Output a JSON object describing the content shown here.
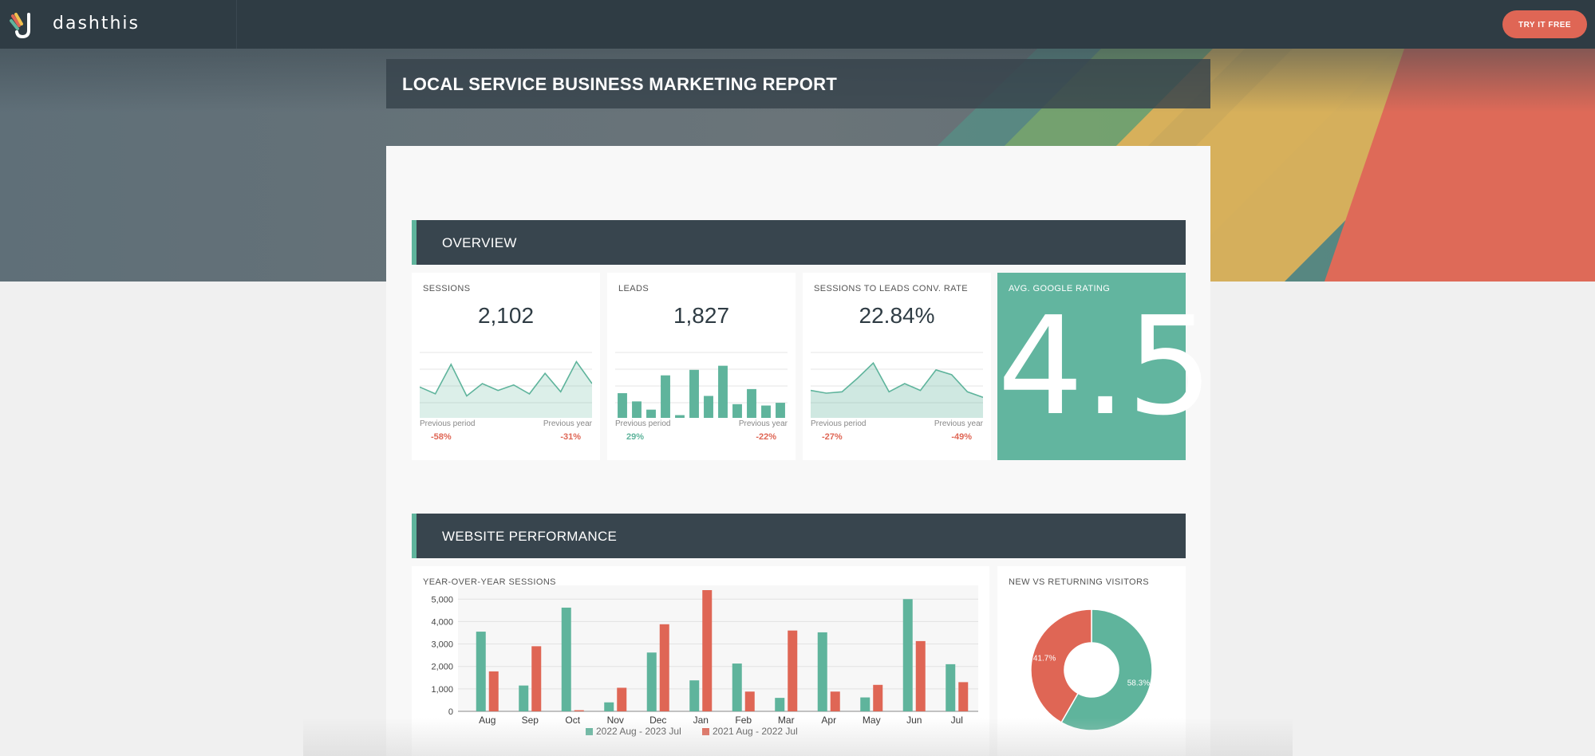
{
  "app": {
    "logo_text": "dashthis",
    "cta_label": "TRY IT FREE"
  },
  "report": {
    "title": "LOCAL SERVICE BUSINESS MARKETING REPORT"
  },
  "colors": {
    "accent_green": "#5fb49c",
    "accent_red": "#df6655",
    "header_dark": "#38454e",
    "topbar": "#2f3c44"
  },
  "overview": {
    "heading": "OVERVIEW",
    "kpis": [
      {
        "title": "SESSIONS",
        "value": "2,102",
        "prev_period_label": "Previous period",
        "prev_period": "-58%",
        "prev_year_label": "Previous year",
        "prev_year": "-31%"
      },
      {
        "title": "LEADS",
        "value": "1,827",
        "prev_period_label": "Previous period",
        "prev_period": "29%",
        "prev_year_label": "Previous year",
        "prev_year": "-22%"
      },
      {
        "title": "SESSIONS TO LEADS CONV. RATE",
        "value": "22.84%",
        "prev_period_label": "Previous period",
        "prev_period": "-27%",
        "prev_year_label": "Previous year",
        "prev_year": "-49%"
      }
    ],
    "rating": {
      "title": "AVG. GOOGLE RATING",
      "value": "4.5"
    }
  },
  "website": {
    "heading": "WEBSITE PERFORMANCE",
    "sessions_chart_title": "YEAR-OVER-YEAR SESSIONS",
    "visitors_chart_title": "NEW VS RETURNING VISITORS"
  },
  "chart_data": [
    {
      "type": "line",
      "title": "SESSIONS",
      "values": [
        45,
        35,
        78,
        32,
        50,
        40,
        48,
        35,
        65,
        38,
        82,
        50
      ]
    },
    {
      "type": "bar",
      "title": "LEADS",
      "values": [
        36,
        24,
        12,
        62,
        4,
        70,
        32,
        76,
        20,
        42,
        18,
        22
      ]
    },
    {
      "type": "area",
      "title": "SESSIONS TO LEADS CONV. RATE",
      "values": [
        40,
        36,
        38,
        58,
        80,
        38,
        50,
        40,
        70,
        63,
        38,
        30
      ]
    },
    {
      "type": "bar",
      "title": "YEAR-OVER-YEAR SESSIONS",
      "categories": [
        "Aug",
        "Sep",
        "Oct",
        "Nov",
        "Dec",
        "Jan",
        "Feb",
        "Mar",
        "Apr",
        "May",
        "Jun",
        "Jul"
      ],
      "series": [
        {
          "name": "2022 Aug - 2023 Jul",
          "color": "#5fb49c",
          "values": [
            3550,
            1150,
            4620,
            400,
            2620,
            1380,
            2130,
            600,
            3520,
            620,
            5000,
            2100
          ]
        },
        {
          "name": "2021 Aug - 2022 Jul",
          "color": "#df6655",
          "values": [
            1780,
            2900,
            50,
            1050,
            3880,
            5400,
            880,
            3600,
            880,
            1180,
            3130,
            1300
          ]
        }
      ],
      "yticks": [
        "0",
        "1,000",
        "2,000",
        "3,000",
        "4,000",
        "5,000"
      ],
      "ylim": [
        0,
        5400
      ],
      "grid": true,
      "legend": "bottom"
    },
    {
      "type": "pie",
      "title": "NEW VS RETURNING VISITORS",
      "slices": [
        {
          "label": "58.3%",
          "value": 58.3,
          "color": "#5fb49c"
        },
        {
          "label": "41.7%",
          "value": 41.7,
          "color": "#df6655"
        }
      ]
    }
  ]
}
